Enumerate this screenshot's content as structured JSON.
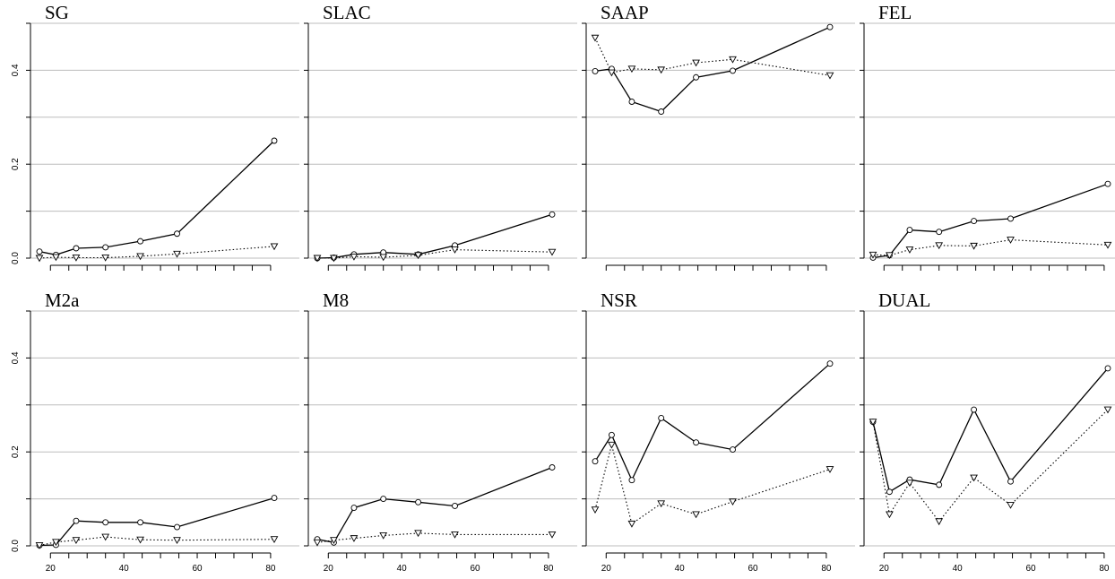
{
  "chart_data": [
    {
      "type": "line",
      "title": "SG",
      "x": [
        17,
        21.5,
        27,
        35,
        44.5,
        54.5,
        81
      ],
      "xlim": [
        17,
        81
      ],
      "ylim": [
        0,
        0.5
      ],
      "y_ticks": [
        "0.0",
        "0.2",
        "0.4"
      ],
      "grid": true,
      "series": [
        {
          "values": [
            0.014,
            0.007,
            0.021,
            0.023,
            0.036,
            0.052,
            0.25
          ],
          "style": "solid",
          "marker": "circle"
        },
        {
          "values": [
            0.0,
            0.002,
            0.001,
            0.001,
            0.004,
            0.009,
            0.025
          ],
          "style": "dotted",
          "marker": "triangle-down"
        }
      ]
    },
    {
      "type": "line",
      "title": "SLAC",
      "x": [
        17,
        21.5,
        27,
        35,
        44.5,
        54.5,
        81
      ],
      "xlim": [
        17,
        81
      ],
      "ylim": [
        0,
        0.5
      ],
      "grid": true,
      "series": [
        {
          "values": [
            0.0,
            0.001,
            0.008,
            0.012,
            0.008,
            0.027,
            0.093
          ],
          "style": "solid",
          "marker": "circle"
        },
        {
          "values": [
            0.0,
            0.0,
            0.003,
            0.002,
            0.006,
            0.018,
            0.013
          ],
          "style": "dotted",
          "marker": "triangle-down"
        }
      ]
    },
    {
      "type": "line",
      "title": "SAAP",
      "x": [
        17,
        21.5,
        27,
        35,
        44.5,
        54.5,
        81
      ],
      "xlim": [
        17,
        81
      ],
      "ylim": [
        0,
        0.5
      ],
      "grid": true,
      "series": [
        {
          "values": [
            0.398,
            0.403,
            0.333,
            0.312,
            0.385,
            0.399,
            0.492
          ],
          "style": "solid",
          "marker": "circle"
        },
        {
          "values": [
            0.469,
            0.395,
            0.403,
            0.401,
            0.416,
            0.423,
            0.389
          ],
          "style": "dotted",
          "marker": "triangle-down"
        }
      ]
    },
    {
      "type": "line",
      "title": "FEL",
      "x": [
        17,
        21.5,
        27,
        35,
        44.5,
        54.5,
        81
      ],
      "xlim": [
        17,
        81
      ],
      "ylim": [
        0,
        0.5
      ],
      "grid": true,
      "series": [
        {
          "values": [
            0.001,
            0.006,
            0.06,
            0.056,
            0.079,
            0.084,
            0.158
          ],
          "style": "solid",
          "marker": "circle"
        },
        {
          "values": [
            0.007,
            0.006,
            0.018,
            0.027,
            0.026,
            0.039,
            0.028
          ],
          "style": "dotted",
          "marker": "triangle-down"
        }
      ]
    },
    {
      "type": "line",
      "title": "M2a",
      "x": [
        17,
        21.5,
        27,
        35,
        44.5,
        54.5,
        81
      ],
      "xlim": [
        17,
        81
      ],
      "ylim": [
        0,
        0.5
      ],
      "x_ticks": [
        "20",
        "40",
        "60",
        "80"
      ],
      "y_ticks": [
        "0.0",
        "0.2",
        "0.4"
      ],
      "grid": true,
      "series": [
        {
          "values": [
            0.001,
            0.002,
            0.053,
            0.05,
            0.05,
            0.04,
            0.102
          ],
          "style": "solid",
          "marker": "circle"
        },
        {
          "values": [
            0.001,
            0.008,
            0.012,
            0.019,
            0.013,
            0.012,
            0.014
          ],
          "style": "dotted",
          "marker": "triangle-down"
        }
      ]
    },
    {
      "type": "line",
      "title": "M8",
      "x": [
        17,
        21.5,
        27,
        35,
        44.5,
        54.5,
        81
      ],
      "xlim": [
        17,
        81
      ],
      "ylim": [
        0,
        0.5
      ],
      "x_ticks": [
        "20",
        "40",
        "60",
        "80"
      ],
      "grid": true,
      "series": [
        {
          "values": [
            0.014,
            0.007,
            0.081,
            0.1,
            0.093,
            0.085,
            0.167
          ],
          "style": "solid",
          "marker": "circle"
        },
        {
          "values": [
            0.007,
            0.012,
            0.016,
            0.022,
            0.027,
            0.024,
            0.024
          ],
          "style": "dotted",
          "marker": "triangle-down"
        }
      ]
    },
    {
      "type": "line",
      "title": "NSR",
      "x": [
        17,
        21.5,
        27,
        35,
        44.5,
        54.5,
        81
      ],
      "xlim": [
        17,
        81
      ],
      "ylim": [
        0,
        0.5
      ],
      "x_ticks": [
        "20",
        "40",
        "60",
        "80"
      ],
      "grid": true,
      "series": [
        {
          "values": [
            0.18,
            0.236,
            0.14,
            0.272,
            0.22,
            0.205,
            0.388
          ],
          "style": "solid",
          "marker": "circle"
        },
        {
          "values": [
            0.077,
            0.215,
            0.047,
            0.09,
            0.067,
            0.094,
            0.163
          ],
          "style": "dotted",
          "marker": "triangle-down"
        }
      ]
    },
    {
      "type": "line",
      "title": "DUAL",
      "x": [
        17,
        21.5,
        27,
        35,
        44.5,
        54.5,
        81
      ],
      "xlim": [
        17,
        81
      ],
      "ylim": [
        0,
        0.5
      ],
      "x_ticks": [
        "20",
        "40",
        "60",
        "80"
      ],
      "grid": true,
      "series": [
        {
          "values": [
            0.264,
            0.115,
            0.141,
            0.13,
            0.29,
            0.137,
            0.378
          ],
          "style": "solid",
          "marker": "circle"
        },
        {
          "values": [
            0.264,
            0.067,
            0.134,
            0.052,
            0.145,
            0.087,
            0.29
          ],
          "style": "dotted",
          "marker": "triangle-down"
        }
      ]
    }
  ]
}
